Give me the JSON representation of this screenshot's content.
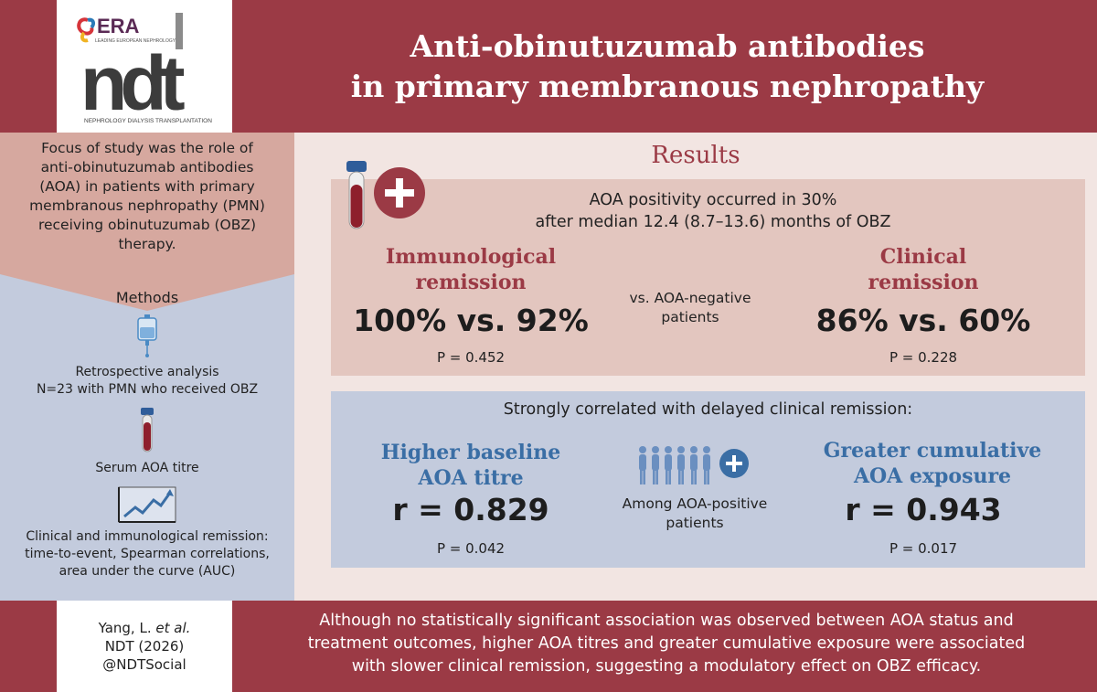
{
  "logo": {
    "brand": "ERA",
    "tagline": "LEADING EUROPEAN NEPHROLOGY",
    "mark": "ndt",
    "subtitle": "NEPHROLOGY DIALYSIS TRANSPLANTATION"
  },
  "header": {
    "title_line1": "Anti-obinutuzumab antibodies",
    "title_line2": "in primary membranous nephropathy"
  },
  "focus": {
    "lines": [
      "Focus of study was the role of",
      "anti-obinutuzumab antibodies",
      "(AOA) in patients with primary",
      "membranous nephropathy (PMN)",
      "receiving obinutuzumab (OBZ)",
      "therapy."
    ]
  },
  "methods": {
    "heading": "Methods",
    "step1_line1": "Retrospective analysis",
    "step1_line2": "N=23 with PMN who received OBZ",
    "step2": "Serum AOA titre",
    "step3_line1": "Clinical and immunological remission:",
    "step3_line2": "time-to-event, Spearman correlations,",
    "step3_line3": "area under the curve (AUC)"
  },
  "results": {
    "heading": "Results",
    "positivity_line1": "AOA positivity occurred in 30%",
    "positivity_line2": "after median 12.4 (8.7–13.6) months of OBZ",
    "immuno_line1": "Immunological",
    "immuno_line2": "remission",
    "immuno_value": "100% vs. 92%",
    "immuno_p": "P = 0.452",
    "vs_line1": "vs. AOA-negative",
    "vs_line2": "patients",
    "clinical_line1": "Clinical",
    "clinical_line2": "remission",
    "clinical_value": "86% vs. 60%",
    "clinical_p": "P = 0.228"
  },
  "correlation": {
    "heading": "Strongly correlated with delayed clinical remission:",
    "left_line1": "Higher baseline",
    "left_line2": "AOA titre",
    "left_value": "r = 0.829",
    "left_p": "P = 0.042",
    "mid_line1": "Among AOA-positive",
    "mid_line2": "patients",
    "right_line1": "Greater cumulative",
    "right_line2": "AOA exposure",
    "right_value": "r = 0.943",
    "right_p": "P = 0.017"
  },
  "citation": {
    "author": "Yang, L.",
    "etal": "et al.",
    "journal": "NDT (2026)",
    "handle": "@NDTSocial"
  },
  "conclusion": {
    "line1": "Although no statistically significant association was observed between AOA status and",
    "line2": "treatment outcomes, higher AOA titres and greater cumulative exposure were associated",
    "line3": "with slower clinical remission, suggesting a modulatory effect on OBZ efficacy."
  },
  "colors": {
    "accent_red": "#9b3a45",
    "accent_blue": "#3a6ea5",
    "pink_panel": "#e3c6bf",
    "blue_panel": "#c3cbdd"
  }
}
